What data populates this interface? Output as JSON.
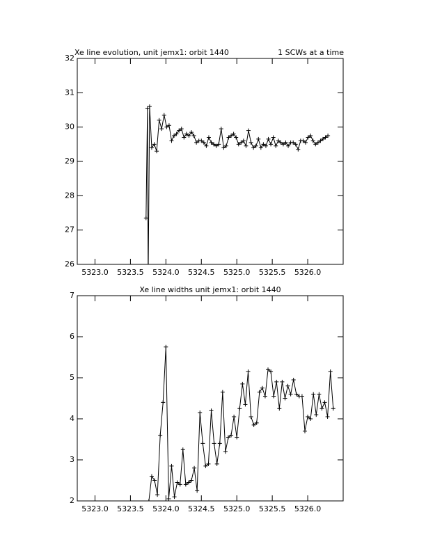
{
  "chart_data": [
    {
      "type": "line",
      "title": "Xe line evolution, unit jemx1: orbit 1440",
      "subtitle": "1 SCWs at a time",
      "color": "#000000",
      "x": [
        5323.72,
        5323.74,
        5323.75,
        5323.77,
        5323.8,
        5323.835,
        5323.87,
        5323.905,
        5323.94,
        5323.975,
        5324.01,
        5324.045,
        5324.08,
        5324.115,
        5324.15,
        5324.185,
        5324.22,
        5324.255,
        5324.29,
        5324.325,
        5324.36,
        5324.395,
        5324.43,
        5324.465,
        5324.5,
        5324.535,
        5324.57,
        5324.605,
        5324.64,
        5324.675,
        5324.71,
        5324.745,
        5324.78,
        5324.815,
        5324.85,
        5324.885,
        5324.92,
        5324.955,
        5324.99,
        5325.025,
        5325.06,
        5325.095,
        5325.13,
        5325.165,
        5325.2,
        5325.235,
        5325.27,
        5325.305,
        5325.34,
        5325.375,
        5325.41,
        5325.445,
        5325.48,
        5325.515,
        5325.55,
        5325.585,
        5325.62,
        5325.655,
        5325.69,
        5325.725,
        5325.76,
        5325.795,
        5325.83,
        5325.865,
        5325.9,
        5325.935,
        5325.97,
        5326.005,
        5326.04,
        5326.075,
        5326.11,
        5326.145,
        5326.18,
        5326.215,
        5326.25,
        5326.285
      ],
      "values": [
        27.35,
        30.55,
        25.5,
        30.6,
        29.4,
        29.5,
        29.3,
        30.2,
        29.95,
        30.35,
        30.0,
        30.05,
        29.6,
        29.75,
        29.8,
        29.9,
        29.95,
        29.7,
        29.8,
        29.75,
        29.85,
        29.75,
        29.55,
        29.6,
        29.6,
        29.55,
        29.45,
        29.7,
        29.55,
        29.5,
        29.45,
        29.5,
        29.95,
        29.4,
        29.45,
        29.7,
        29.75,
        29.8,
        29.7,
        29.5,
        29.55,
        29.6,
        29.45,
        29.9,
        29.55,
        29.4,
        29.45,
        29.65,
        29.4,
        29.5,
        29.45,
        29.65,
        29.5,
        29.7,
        29.45,
        29.6,
        29.55,
        29.5,
        29.55,
        29.45,
        29.55,
        29.55,
        29.5,
        29.35,
        29.6,
        29.6,
        29.55,
        29.7,
        29.75,
        29.6,
        29.5,
        29.55,
        29.6,
        29.65,
        29.7,
        29.75
      ],
      "xlim": [
        5322.75,
        5326.5
      ],
      "xticks": [
        {
          "value": 5323,
          "label": "5323.0"
        },
        5323.5,
        {
          "value": 5324,
          "label": "5324.0"
        },
        5324.5,
        {
          "value": 5325,
          "label": "5325.0"
        },
        5325.5,
        {
          "value": 5326,
          "label": "5326.0"
        }
      ],
      "ylim": [
        26,
        32
      ],
      "yticks": [
        26,
        27,
        28,
        29,
        30,
        31,
        32
      ]
    },
    {
      "type": "line",
      "title": "Xe line widths unit jemx1: orbit 1440",
      "color": "#000000",
      "x": [
        5323.76,
        5323.8,
        5323.84,
        5323.88,
        5323.92,
        5323.96,
        5324.0,
        5324.04,
        5324.08,
        5324.12,
        5324.16,
        5324.2,
        5324.24,
        5324.28,
        5324.32,
        5324.36,
        5324.4,
        5324.44,
        5324.48,
        5324.52,
        5324.56,
        5324.6,
        5324.64,
        5324.68,
        5324.72,
        5324.76,
        5324.8,
        5324.84,
        5324.88,
        5324.92,
        5324.96,
        5325.0,
        5325.04,
        5325.08,
        5325.12,
        5325.16,
        5325.2,
        5325.24,
        5325.28,
        5325.32,
        5325.36,
        5325.4,
        5325.44,
        5325.48,
        5325.52,
        5325.56,
        5325.6,
        5325.64,
        5325.68,
        5325.72,
        5325.76,
        5325.8,
        5325.84,
        5325.88,
        5325.92,
        5325.96,
        5326.0,
        5326.04,
        5326.08,
        5326.12,
        5326.16,
        5326.2,
        5326.24,
        5326.28,
        5326.32,
        5326.36
      ],
      "values": [
        2.0,
        2.6,
        2.5,
        2.15,
        3.6,
        4.4,
        5.75,
        2.05,
        2.85,
        2.1,
        2.45,
        2.4,
        3.25,
        2.4,
        2.45,
        2.5,
        2.8,
        2.25,
        4.15,
        3.4,
        2.85,
        2.9,
        4.2,
        3.4,
        2.9,
        3.4,
        4.65,
        3.2,
        3.55,
        3.6,
        4.05,
        3.55,
        4.25,
        4.85,
        4.35,
        5.15,
        4.05,
        3.85,
        3.9,
        4.65,
        4.75,
        4.55,
        5.2,
        5.15,
        4.55,
        4.9,
        4.25,
        4.9,
        4.5,
        4.8,
        4.6,
        4.95,
        4.6,
        4.55,
        4.55,
        3.7,
        4.05,
        4.0,
        4.6,
        4.1,
        4.6,
        4.25,
        4.4,
        4.05,
        5.15,
        4.25
      ],
      "xlim": [
        5322.75,
        5326.5
      ],
      "xticks": [
        {
          "value": 5323,
          "label": "5323.0"
        },
        5323.5,
        {
          "value": 5324,
          "label": "5324.0"
        },
        5324.5,
        {
          "value": 5325,
          "label": "5325.0"
        },
        5325.5,
        {
          "value": 5326,
          "label": "5326.0"
        }
      ],
      "ylim": [
        2,
        7
      ],
      "yticks": [
        2,
        3,
        4,
        5,
        6,
        7
      ]
    }
  ]
}
